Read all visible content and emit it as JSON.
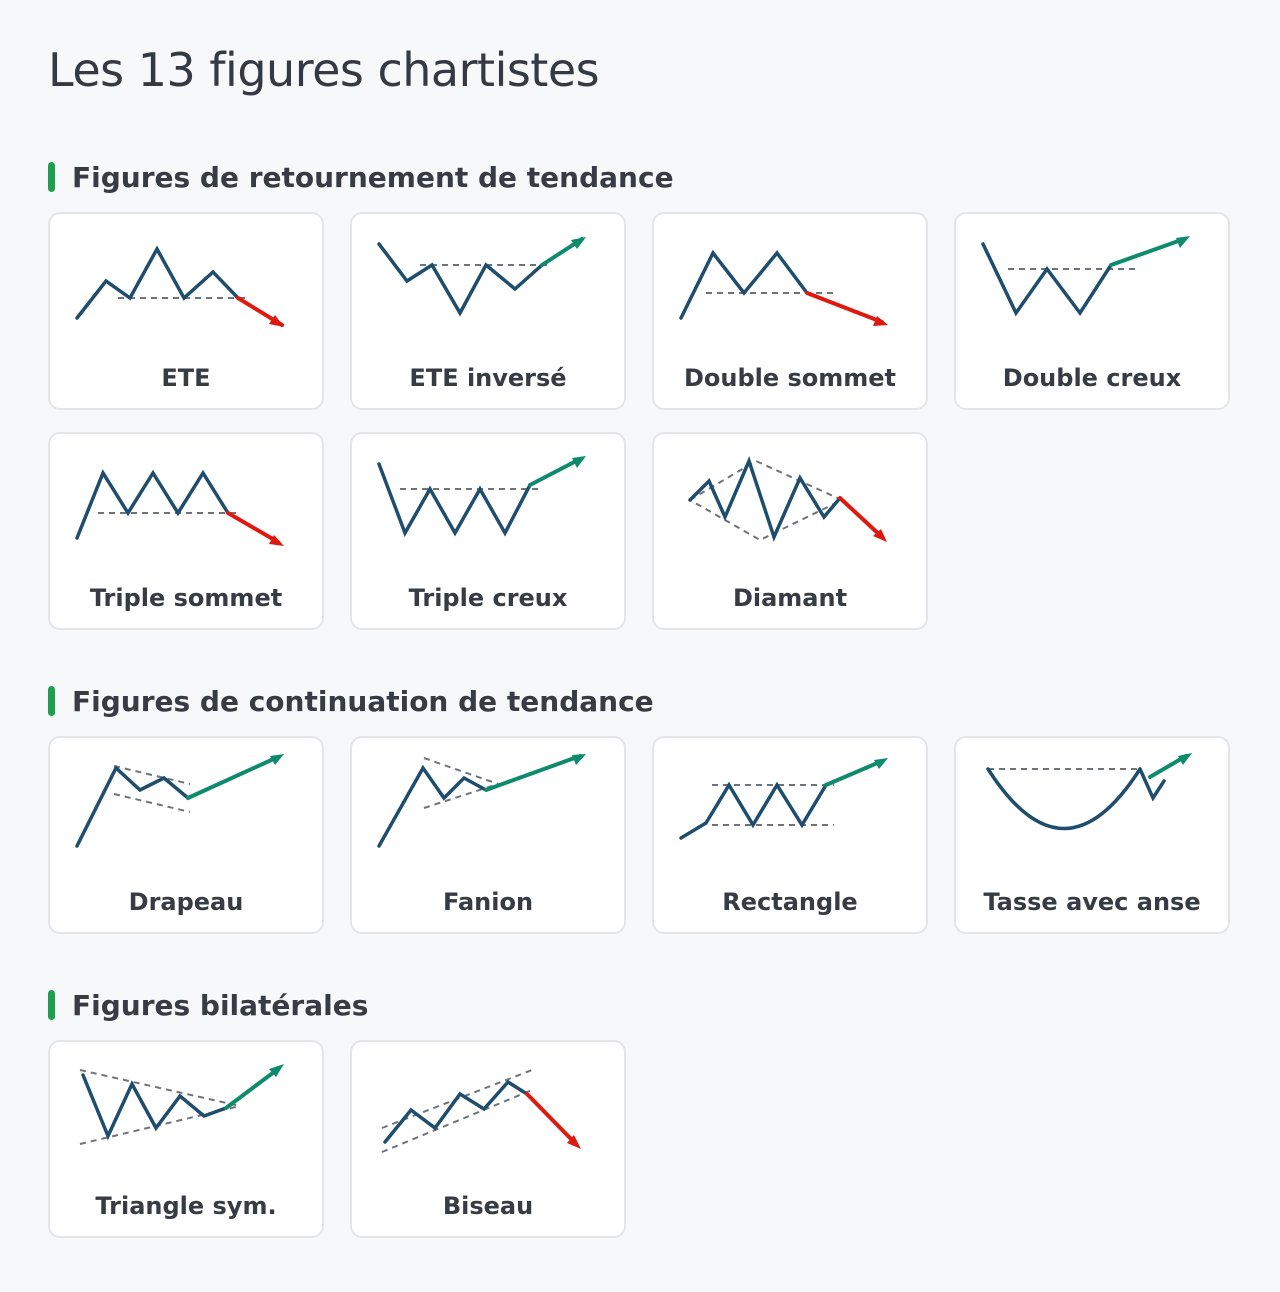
{
  "title": "Les 13 figures chartistes",
  "colors": {
    "accent": "#1e9e4e",
    "price_line": "#1f4d6e",
    "up_arrow": "#0e8a6c",
    "down_arrow": "#e0190f",
    "dashed_line": "#6f747b"
  },
  "sections": [
    {
      "title": "Figures de retournement de tendance",
      "patterns": [
        {
          "label": "ETE",
          "breakout": "down"
        },
        {
          "label": "ETE inversé",
          "breakout": "up"
        },
        {
          "label": "Double sommet",
          "breakout": "down"
        },
        {
          "label": "Double creux",
          "breakout": "up"
        },
        {
          "label": "Triple sommet",
          "breakout": "down"
        },
        {
          "label": "Triple creux",
          "breakout": "up"
        },
        {
          "label": "Diamant",
          "breakout": "down"
        }
      ]
    },
    {
      "title": "Figures de continuation de tendance",
      "patterns": [
        {
          "label": "Drapeau",
          "breakout": "up"
        },
        {
          "label": "Fanion",
          "breakout": "up"
        },
        {
          "label": "Rectangle",
          "breakout": "up"
        },
        {
          "label": "Tasse avec anse",
          "breakout": "up"
        }
      ]
    },
    {
      "title": "Figures bilatérales",
      "patterns": [
        {
          "label": "Triangle sym.",
          "breakout": "up"
        },
        {
          "label": "Biseau",
          "breakout": "down"
        }
      ]
    }
  ]
}
